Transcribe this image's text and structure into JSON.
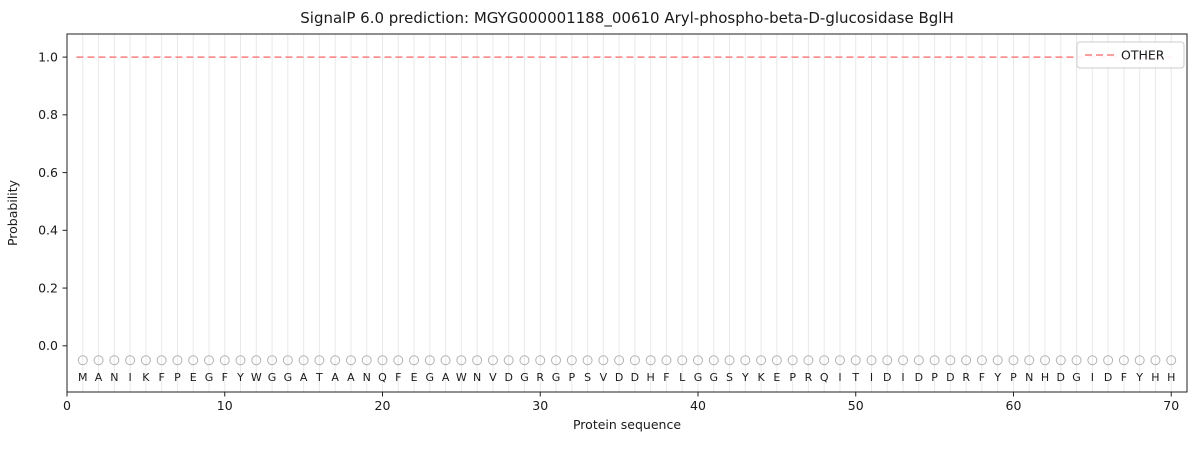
{
  "figure": {
    "title": "SignalP 6.0 prediction: MGYG000001188_00610 Aryl-phospho-beta-D-glucosidase BglH"
  },
  "chart_data": {
    "type": "line",
    "title": "SignalP 6.0 prediction: MGYG000001188_00610 Aryl-phospho-beta-D-glucosidase BglH",
    "xlabel": "Protein sequence",
    "ylabel": "Probability",
    "xlim": [
      0,
      71
    ],
    "ylim": [
      -0.16,
      1.08
    ],
    "xticks": [
      0,
      10,
      20,
      30,
      40,
      50,
      60,
      70
    ],
    "yticks": [
      0.0,
      0.2,
      0.4,
      0.6,
      0.8,
      1.0
    ],
    "ytick_labels": [
      "0.0",
      "0.2",
      "0.4",
      "0.6",
      "0.8",
      "1.0"
    ],
    "grid": "vertical-line-per-residue",
    "legend": {
      "position": "upper-right",
      "entries": [
        {
          "label": "OTHER",
          "color": "#f87f7f",
          "linestyle": "dashed"
        }
      ]
    },
    "series": [
      {
        "name": "OTHER",
        "constant_y": 1.0,
        "x_start": 0.6,
        "x_end": 70.4,
        "linestyle": "dashed",
        "color": "#f87f7f"
      }
    ],
    "sequence": "MANIKFPEGFYWGGATAANQFEGAWNVDGRGPSVDDHFLGGSYKEPRQITIDIDPDRFYPNHDGIDFYHH",
    "sequence_marker": {
      "y": -0.05,
      "shape": "open-circle",
      "color": "#b3b3b3",
      "radius": 4.5
    },
    "colors": {
      "line": "#f87f7f",
      "grid": "#e9e9e9",
      "marker": "#b3b3b3",
      "spine": "#222222",
      "text": "#1a1a1a",
      "legend_border": "#cccccc"
    }
  }
}
